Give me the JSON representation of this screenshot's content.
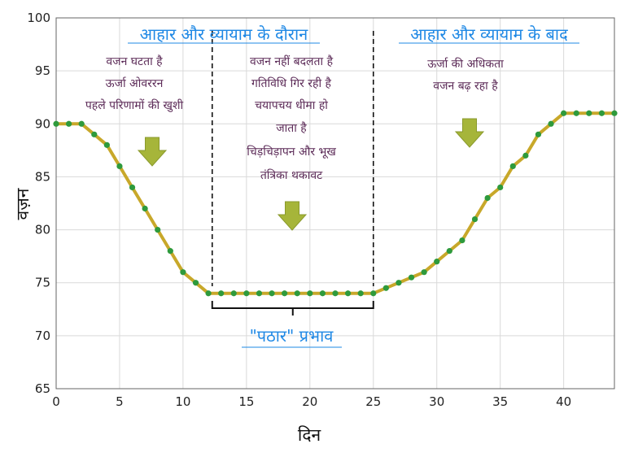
{
  "chart_data": {
    "type": "line",
    "title": "",
    "xlabel": "दिन",
    "ylabel": "वज़न",
    "xlim": [
      0,
      44
    ],
    "ylim": [
      65,
      100
    ],
    "x_ticks": [
      0,
      5,
      10,
      15,
      20,
      25,
      30,
      35,
      40
    ],
    "y_ticks": [
      65,
      70,
      75,
      80,
      85,
      90,
      95,
      100
    ],
    "grid": true,
    "legend": "none",
    "series": [
      {
        "color": "#c8a82a",
        "marker_color": "#2e9a3c",
        "x": [
          0,
          1,
          2,
          3,
          4,
          5,
          6,
          7,
          8,
          9,
          10,
          11,
          12,
          13,
          14,
          15,
          16,
          17,
          18,
          19,
          20,
          21,
          22,
          23,
          24,
          25,
          26,
          27,
          28,
          29,
          30,
          31,
          32,
          33,
          34,
          35,
          36,
          37,
          38,
          39,
          40,
          41,
          42,
          43,
          44
        ],
        "y": [
          90,
          90,
          90,
          89,
          88,
          86,
          84,
          82,
          80,
          78,
          76,
          75,
          74,
          74,
          74,
          74,
          74,
          74,
          74,
          74,
          74,
          74,
          74,
          74,
          74,
          74,
          74.5,
          75,
          75.5,
          76,
          77,
          78,
          79,
          81,
          83,
          84,
          86,
          87,
          89,
          90,
          91,
          91,
          91,
          91,
          91
        ]
      }
    ],
    "dividers": [
      12.3,
      25
    ],
    "bracket": {
      "from": 12.3,
      "to": 25,
      "label": "\"पठार\" प्रभाव"
    },
    "annotations": [
      {
        "title": "आहार और व्यायाम के दौरान",
        "lines": [
          "वजन घटता है",
          "ऊर्जा ओवररन",
          "पहले परिणामों की खुशी"
        ]
      },
      {
        "title": "",
        "lines": [
          "वजन नहीं बदलता है",
          "गतिविधि गिर रही है",
          "चयापचय धीमा हो",
          "जाता है",
          "चिड़चिड़ापन और भूख",
          "तंत्रिका थकावट"
        ]
      },
      {
        "title": "आहार और व्यायाम के बाद",
        "lines": [
          "ऊर्जा की अधिकता",
          "वजन बढ़ रहा है"
        ]
      }
    ],
    "arrow_color": "#a6b53a"
  }
}
